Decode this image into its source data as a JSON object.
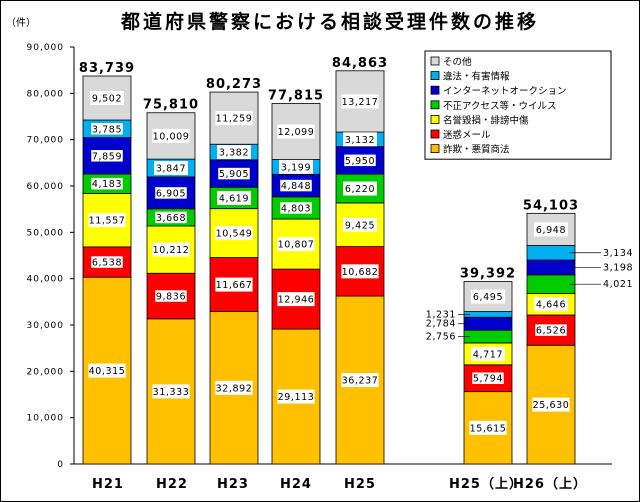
{
  "chart_data": {
    "type": "bar",
    "stacked": true,
    "title": "都道府県警察における相談受理件数の推移",
    "unit_label": "（件）",
    "ylim": [
      0,
      90000
    ],
    "y_ticks": [
      "0",
      "10,000",
      "20,000",
      "30,000",
      "40,000",
      "50,000",
      "60,000",
      "70,000",
      "80,000",
      "90,000"
    ],
    "categories": [
      "H21",
      "H22",
      "H23",
      "H24",
      "H25",
      "H25（上）",
      "H26（上）"
    ],
    "totals": [
      "83,739",
      "75,810",
      "80,273",
      "77,815",
      "84,863",
      "39,392",
      "54,103"
    ],
    "series": [
      {
        "name": "詐欺・悪質商法",
        "color": "#FFC000",
        "values": [
          40315,
          31333,
          32892,
          29113,
          36237,
          15615,
          25630
        ],
        "labels": [
          "40,315",
          "31,333",
          "32,892",
          "29,113",
          "36,237",
          "15,615",
          "25,630"
        ]
      },
      {
        "name": "迷惑メール",
        "color": "#FF0000",
        "values": [
          6538,
          9836,
          11667,
          12946,
          10682,
          5794,
          6526
        ],
        "labels": [
          "6,538",
          "9,836",
          "11,667",
          "12,946",
          "10,682",
          "5,794",
          "6,526"
        ]
      },
      {
        "name": "名誉毀損・誹謗中傷",
        "color": "#FFFF00",
        "values": [
          11557,
          10212,
          10549,
          10807,
          9425,
          4717,
          4646
        ],
        "labels": [
          "11,557",
          "10,212",
          "10,549",
          "10,807",
          "9,425",
          "4,717",
          "4,646"
        ]
      },
      {
        "name": "不正アクセス等・ウイルス",
        "color": "#00CC00",
        "values": [
          4183,
          3668,
          4619,
          4803,
          6220,
          2756,
          4021
        ],
        "labels": [
          "4,183",
          "3,668",
          "4,619",
          "4,803",
          "6,220",
          "2,756",
          "4,021"
        ]
      },
      {
        "name": "インターネットオークション",
        "color": "#0000CC",
        "values": [
          7859,
          6905,
          5905,
          4848,
          5950,
          2784,
          3198
        ],
        "labels": [
          "7,859",
          "6,905",
          "5,905",
          "4,848",
          "5,950",
          "2,784",
          "3,198"
        ]
      },
      {
        "name": "違法・有害情報",
        "color": "#00B0F0",
        "values": [
          3785,
          3847,
          3382,
          3199,
          3132,
          1231,
          3134
        ],
        "labels": [
          "3,785",
          "3,847",
          "3,382",
          "3,199",
          "3,132",
          "1,231",
          "3,134"
        ]
      },
      {
        "name": "その他",
        "color": "#D9D9D9",
        "values": [
          9502,
          10009,
          11259,
          12099,
          13217,
          6495,
          6948
        ],
        "labels": [
          "9,502",
          "10,009",
          "11,259",
          "12,099",
          "13,217",
          "6,495",
          "6,948"
        ]
      }
    ],
    "legend_position": "top-right"
  }
}
